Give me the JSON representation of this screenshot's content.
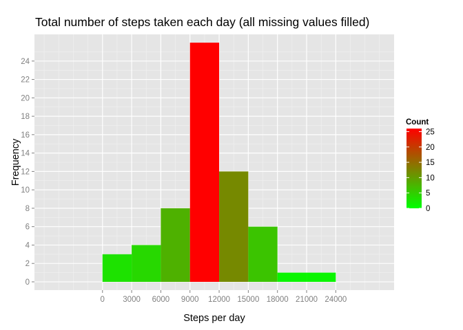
{
  "chart_data": {
    "type": "bar",
    "title": "Total number of steps taken each day (all missing values filled)",
    "xlabel": "Steps per day",
    "ylabel": "Frequency",
    "xlim": [
      -7000,
      30000
    ],
    "ylim": [
      -0.9,
      26.9
    ],
    "x_ticks": [
      0,
      3000,
      6000,
      9000,
      12000,
      15000,
      18000,
      21000,
      24000
    ],
    "x_tick_labels": [
      "0",
      "3000",
      "6000",
      "9000",
      "12000",
      "15000",
      "18000",
      "21000",
      "24000"
    ],
    "y_ticks": [
      0,
      2,
      4,
      6,
      8,
      10,
      12,
      14,
      16,
      18,
      20,
      22,
      24
    ],
    "y_tick_labels": [
      "0",
      "2",
      "4",
      "6",
      "8",
      "10",
      "12",
      "14",
      "16",
      "18",
      "20",
      "22",
      "24"
    ],
    "bins": [
      {
        "x0": 0,
        "x1": 3000,
        "count": 3
      },
      {
        "x0": 3000,
        "x1": 6000,
        "count": 4
      },
      {
        "x0": 6000,
        "x1": 9000,
        "count": 8
      },
      {
        "x0": 9000,
        "x1": 12000,
        "count": 26
      },
      {
        "x0": 12000,
        "x1": 15000,
        "count": 12
      },
      {
        "x0": 15000,
        "x1": 18000,
        "count": 6
      },
      {
        "x0": 18000,
        "x1": 21000,
        "count": 1
      },
      {
        "x0": 21000,
        "x1": 24000,
        "count": 1
      }
    ],
    "grid": true,
    "colors": {
      "low": "#00ff00",
      "high": "#ff0000",
      "panel": "#e5e5e5",
      "grid": "#f2f2f2"
    },
    "legend": {
      "title": "Count",
      "placement": "right",
      "limits": [
        0,
        26
      ],
      "ticks": [
        0,
        5,
        10,
        15,
        20,
        25
      ],
      "tick_labels": [
        "0",
        "5",
        "10",
        "15",
        "20",
        "25"
      ]
    }
  }
}
